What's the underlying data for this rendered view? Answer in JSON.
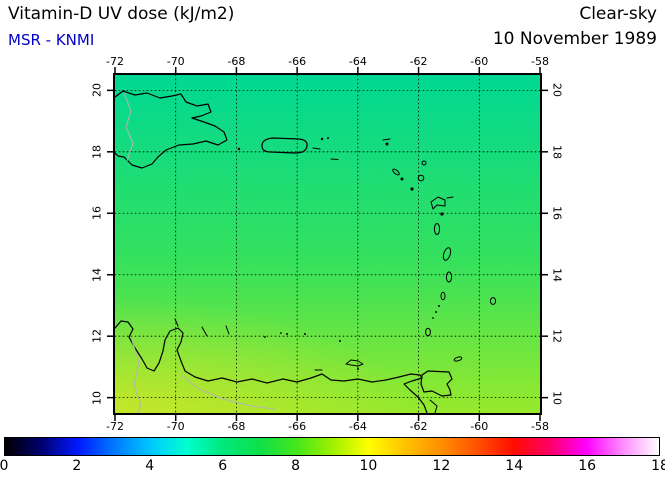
{
  "header": {
    "title": "Vitamin-D UV dose (kJ/m2)",
    "source": "MSR - KNMI",
    "condition": "Clear-sky",
    "date": "10 November 1989"
  },
  "axes": {
    "lon_ticks": [
      "-72",
      "-70",
      "-68",
      "-66",
      "-64",
      "-62",
      "-60",
      "-58"
    ],
    "lat_ticks": [
      "20",
      "18",
      "16",
      "14",
      "12",
      "10"
    ]
  },
  "colorbar": {
    "tick_labels": [
      "0",
      "2",
      "4",
      "6",
      "8",
      "10",
      "12",
      "14",
      "16",
      "18"
    ],
    "stops": [
      {
        "value": 0,
        "color": "#000000"
      },
      {
        "value": 1,
        "color": "#000070"
      },
      {
        "value": 2,
        "color": "#0018ff"
      },
      {
        "value": 3,
        "color": "#0078ff"
      },
      {
        "value": 4,
        "color": "#00c8ff"
      },
      {
        "value": 5,
        "color": "#00ffd0"
      },
      {
        "value": 6,
        "color": "#00e87c"
      },
      {
        "value": 7,
        "color": "#0ee04a"
      },
      {
        "value": 8,
        "color": "#42e61c"
      },
      {
        "value": 9,
        "color": "#9ef000"
      },
      {
        "value": 10,
        "color": "#ffff00"
      },
      {
        "value": 11,
        "color": "#ffc300"
      },
      {
        "value": 12,
        "color": "#ff8f00"
      },
      {
        "value": 13,
        "color": "#ff5200"
      },
      {
        "value": 14,
        "color": "#ff0c00"
      },
      {
        "value": 15,
        "color": "#ff0068"
      },
      {
        "value": 16,
        "color": "#ff00ff"
      },
      {
        "value": 17,
        "color": "#ff8cff"
      },
      {
        "value": 18,
        "color": "#ffffff"
      }
    ]
  },
  "colors": {
    "title_text": "#000000",
    "source_text": "#0000c8",
    "map_top": "#00d894",
    "map_mid": "#35e15c",
    "map_bottom": "#98e92c",
    "corner_yellow": "#e8e428",
    "coastline": "#000000",
    "border_gray": "#b4b4b4",
    "grid": "#000000"
  },
  "chart_data": {
    "type": "heatmap",
    "title": "Vitamin-D UV dose (kJ/m2)",
    "producer": "MSR - KNMI",
    "scenario": "Clear-sky",
    "date": "10 November 1989",
    "region_shown": "Caribbean / Lesser Antilles with northern South America coast",
    "lon_ticks": [
      -72,
      -70,
      -68,
      -66,
      -64,
      -62,
      -60,
      -58
    ],
    "lat_ticks": [
      20,
      18,
      16,
      14,
      12,
      10
    ],
    "lon_range": [
      -72,
      -58
    ],
    "lat_range": [
      9.5,
      20.5
    ],
    "units": "kJ/m2",
    "colorbar_range": [
      0,
      18
    ],
    "colorbar_ticks": [
      0,
      2,
      4,
      6,
      8,
      10,
      12,
      14,
      16,
      18
    ],
    "field": [
      {
        "lat": 20,
        "approx_dose": 7.2
      },
      {
        "lat": 18,
        "approx_dose": 7.6
      },
      {
        "lat": 16,
        "approx_dose": 8.0
      },
      {
        "lat": 14,
        "approx_dose": 8.5
      },
      {
        "lat": 12,
        "approx_dose": 9.0
      },
      {
        "lat": 10,
        "approx_dose": 9.5
      }
    ],
    "notes": "Smooth north-to-south increase of clear-sky vitamin-D UV dose (green to yellow-green); slightly higher values (yellowish, near 10 kJ/m2) in the southwest corner over the Colombia/Venezuela coast."
  }
}
